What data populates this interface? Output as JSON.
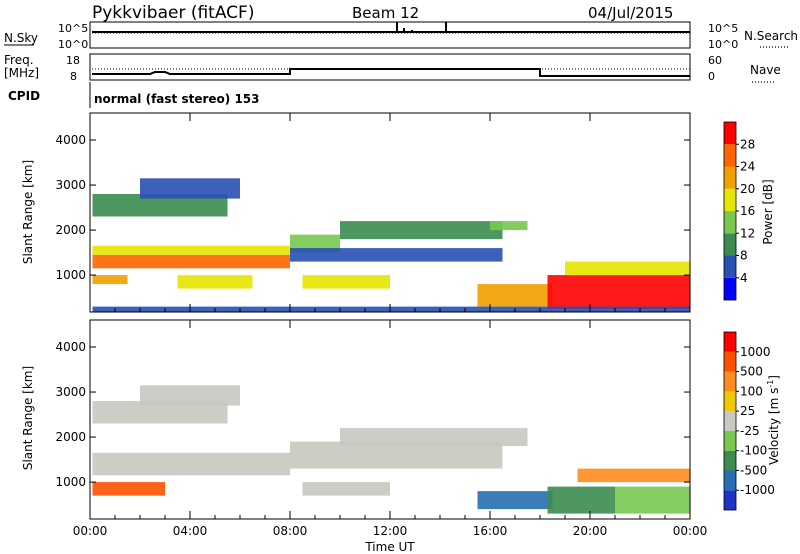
{
  "header": {
    "title": "Pykkvibaer (fitACF)",
    "beam": "Beam 12",
    "date": "04/Jul/2015"
  },
  "top_panels": {
    "nsky_label": "N.Sky",
    "nsearch_label": "N.Search",
    "noise_ticks": [
      "10^5",
      "10^0"
    ],
    "freq_label_line1": "Freq.",
    "freq_label_line2": "[MHz]",
    "freq_ticks": [
      "18",
      "8"
    ],
    "nave_label": "Nave",
    "nave_ticks": [
      "60",
      "0"
    ],
    "cpid_label": "CPID",
    "cpid_text": "normal (fast stereo) 153"
  },
  "chart_data": [
    {
      "type": "heatmap",
      "name": "power",
      "ylabel": "Slant Range [km]",
      "xlabel": "",
      "ylim": [
        180,
        4600
      ],
      "yticks": [
        "4000",
        "3000",
        "2000",
        "1000"
      ],
      "xlim_hours": [
        0,
        24
      ],
      "colorbar_label": "Power [dB]",
      "colorbar_ticks": [
        "28",
        "24",
        "20",
        "16",
        "12",
        "8",
        "4"
      ],
      "colorbar_colors": [
        "#0000ff",
        "#2850b4",
        "#3c8c50",
        "#78c850",
        "#e6e600",
        "#f0a000",
        "#ff6400",
        "#ff0000"
      ],
      "regions": [
        {
          "t0": 0.1,
          "t1": 8.0,
          "r0": 1150,
          "r1": 1450,
          "level": 6
        },
        {
          "t0": 0.1,
          "t1": 8.0,
          "r0": 1450,
          "r1": 1650,
          "level": 4
        },
        {
          "t0": 0.1,
          "t1": 5.5,
          "r0": 2300,
          "r1": 2800,
          "level": 2
        },
        {
          "t0": 2.0,
          "t1": 6.0,
          "r0": 2700,
          "r1": 3150,
          "level": 1
        },
        {
          "t0": 0.1,
          "t1": 1.5,
          "r0": 800,
          "r1": 1000,
          "level": 5
        },
        {
          "t0": 3.5,
          "t1": 6.5,
          "r0": 700,
          "r1": 1000,
          "level": 4
        },
        {
          "t0": 8.0,
          "t1": 10.0,
          "r0": 1500,
          "r1": 1900,
          "level": 3
        },
        {
          "t0": 8.0,
          "t1": 16.5,
          "r0": 1300,
          "r1": 1600,
          "level": 1
        },
        {
          "t0": 10.0,
          "t1": 16.5,
          "r0": 1800,
          "r1": 2200,
          "level": 2
        },
        {
          "t0": 16.0,
          "t1": 17.5,
          "r0": 2000,
          "r1": 2200,
          "level": 3
        },
        {
          "t0": 8.5,
          "t1": 12.0,
          "r0": 700,
          "r1": 1000,
          "level": 4
        },
        {
          "t0": 15.5,
          "t1": 18.5,
          "r0": 300,
          "r1": 800,
          "level": 5
        },
        {
          "t0": 18.3,
          "t1": 24.0,
          "r0": 250,
          "r1": 1000,
          "level": 7
        },
        {
          "t0": 19.0,
          "t1": 24.0,
          "r0": 1000,
          "r1": 1300,
          "level": 4
        },
        {
          "t0": 0.1,
          "t1": 24.0,
          "r0": 180,
          "r1": 300,
          "level": 1
        }
      ]
    },
    {
      "type": "heatmap",
      "name": "velocity",
      "ylabel": "Slant Range [km]",
      "xlabel": "Time UT",
      "ylim": [
        180,
        4600
      ],
      "yticks": [
        "4000",
        "3000",
        "2000",
        "1000"
      ],
      "xticks": [
        "00:00",
        "04:00",
        "08:00",
        "12:00",
        "16:00",
        "20:00",
        "00:00"
      ],
      "xlim_hours": [
        0,
        24
      ],
      "colorbar_label": "Velocity [m s",
      "colorbar_label_sup": "-1",
      "colorbar_label_end": "]",
      "colorbar_ticks": [
        "1000",
        "500",
        "100",
        "25",
        "-25",
        "-100",
        "-500",
        "-1000"
      ],
      "colorbar_colors": [
        "#1e32c8",
        "#286eb4",
        "#3c8c50",
        "#78c850",
        "#c8c8c0",
        "#f0c800",
        "#ff8c1e",
        "#ff5000",
        "#ff0000"
      ],
      "regions": [
        {
          "t0": 0.1,
          "t1": 8.0,
          "r0": 1150,
          "r1": 1650,
          "level": 4
        },
        {
          "t0": 0.1,
          "t1": 5.5,
          "r0": 2300,
          "r1": 2800,
          "level": 4
        },
        {
          "t0": 2.0,
          "t1": 6.0,
          "r0": 2700,
          "r1": 3150,
          "level": 4
        },
        {
          "t0": 0.1,
          "t1": 3.0,
          "r0": 700,
          "r1": 1000,
          "level": 7
        },
        {
          "t0": 8.0,
          "t1": 16.5,
          "r0": 1300,
          "r1": 1900,
          "level": 4
        },
        {
          "t0": 10.0,
          "t1": 17.5,
          "r0": 1800,
          "r1": 2200,
          "level": 4
        },
        {
          "t0": 8.5,
          "t1": 12.0,
          "r0": 700,
          "r1": 1000,
          "level": 4
        },
        {
          "t0": 15.5,
          "t1": 18.5,
          "r0": 400,
          "r1": 800,
          "level": 1
        },
        {
          "t0": 18.3,
          "t1": 21.0,
          "r0": 300,
          "r1": 900,
          "level": 2
        },
        {
          "t0": 21.0,
          "t1": 24.0,
          "r0": 300,
          "r1": 900,
          "level": 3
        },
        {
          "t0": 19.5,
          "t1": 24.0,
          "r0": 1000,
          "r1": 1300,
          "level": 6
        }
      ]
    }
  ]
}
